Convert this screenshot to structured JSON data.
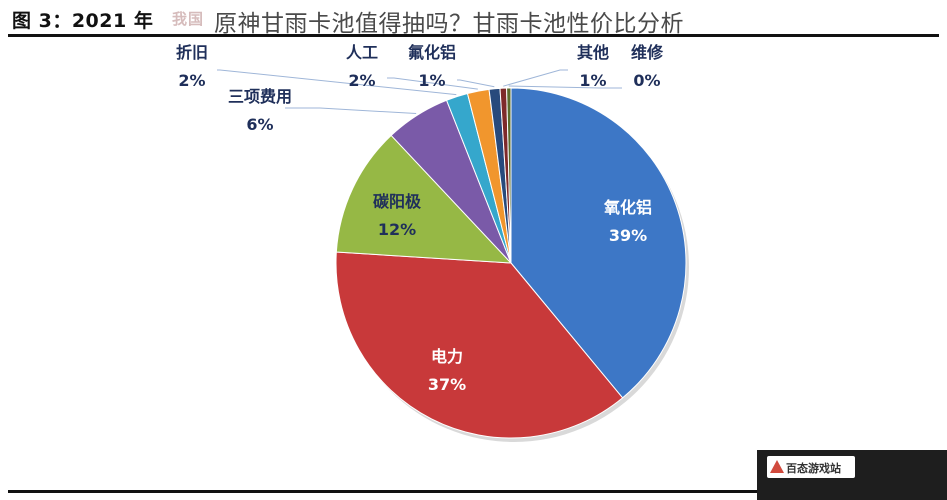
{
  "header": {
    "figure_label": "图 3：2021 年",
    "figure_label_faded": "我国",
    "overlay_title": "原神甘雨卡池值得抽吗？甘雨卡池性价比分析"
  },
  "watermark": {
    "site_name": "百态游戏站"
  },
  "chart_data": {
    "type": "pie",
    "start_angle_deg": 0,
    "direction": "clockwise",
    "slices": [
      {
        "label": "氧化铝",
        "value": 39,
        "display": "39%",
        "color": "#3d77c6"
      },
      {
        "label": "电力",
        "value": 37,
        "display": "37%",
        "color": "#c8393a"
      },
      {
        "label": "碳阳极",
        "value": 12,
        "display": "12%",
        "color": "#96b845"
      },
      {
        "label": "三项费用",
        "value": 6,
        "display": "6%",
        "color": "#7a5aa8"
      },
      {
        "label": "折旧",
        "value": 2,
        "display": "2%",
        "color": "#35a7cc"
      },
      {
        "label": "人工",
        "value": 2,
        "display": "2%",
        "color": "#f1962d"
      },
      {
        "label": "氟化铝",
        "value": 1,
        "display": "1%",
        "color": "#284a7c"
      },
      {
        "label": "其他",
        "value": 0.6,
        "display": "1%",
        "color": "#7e2a2a"
      },
      {
        "label": "维修",
        "value": 0.4,
        "display": "0%",
        "color": "#5b6b2c"
      }
    ]
  }
}
